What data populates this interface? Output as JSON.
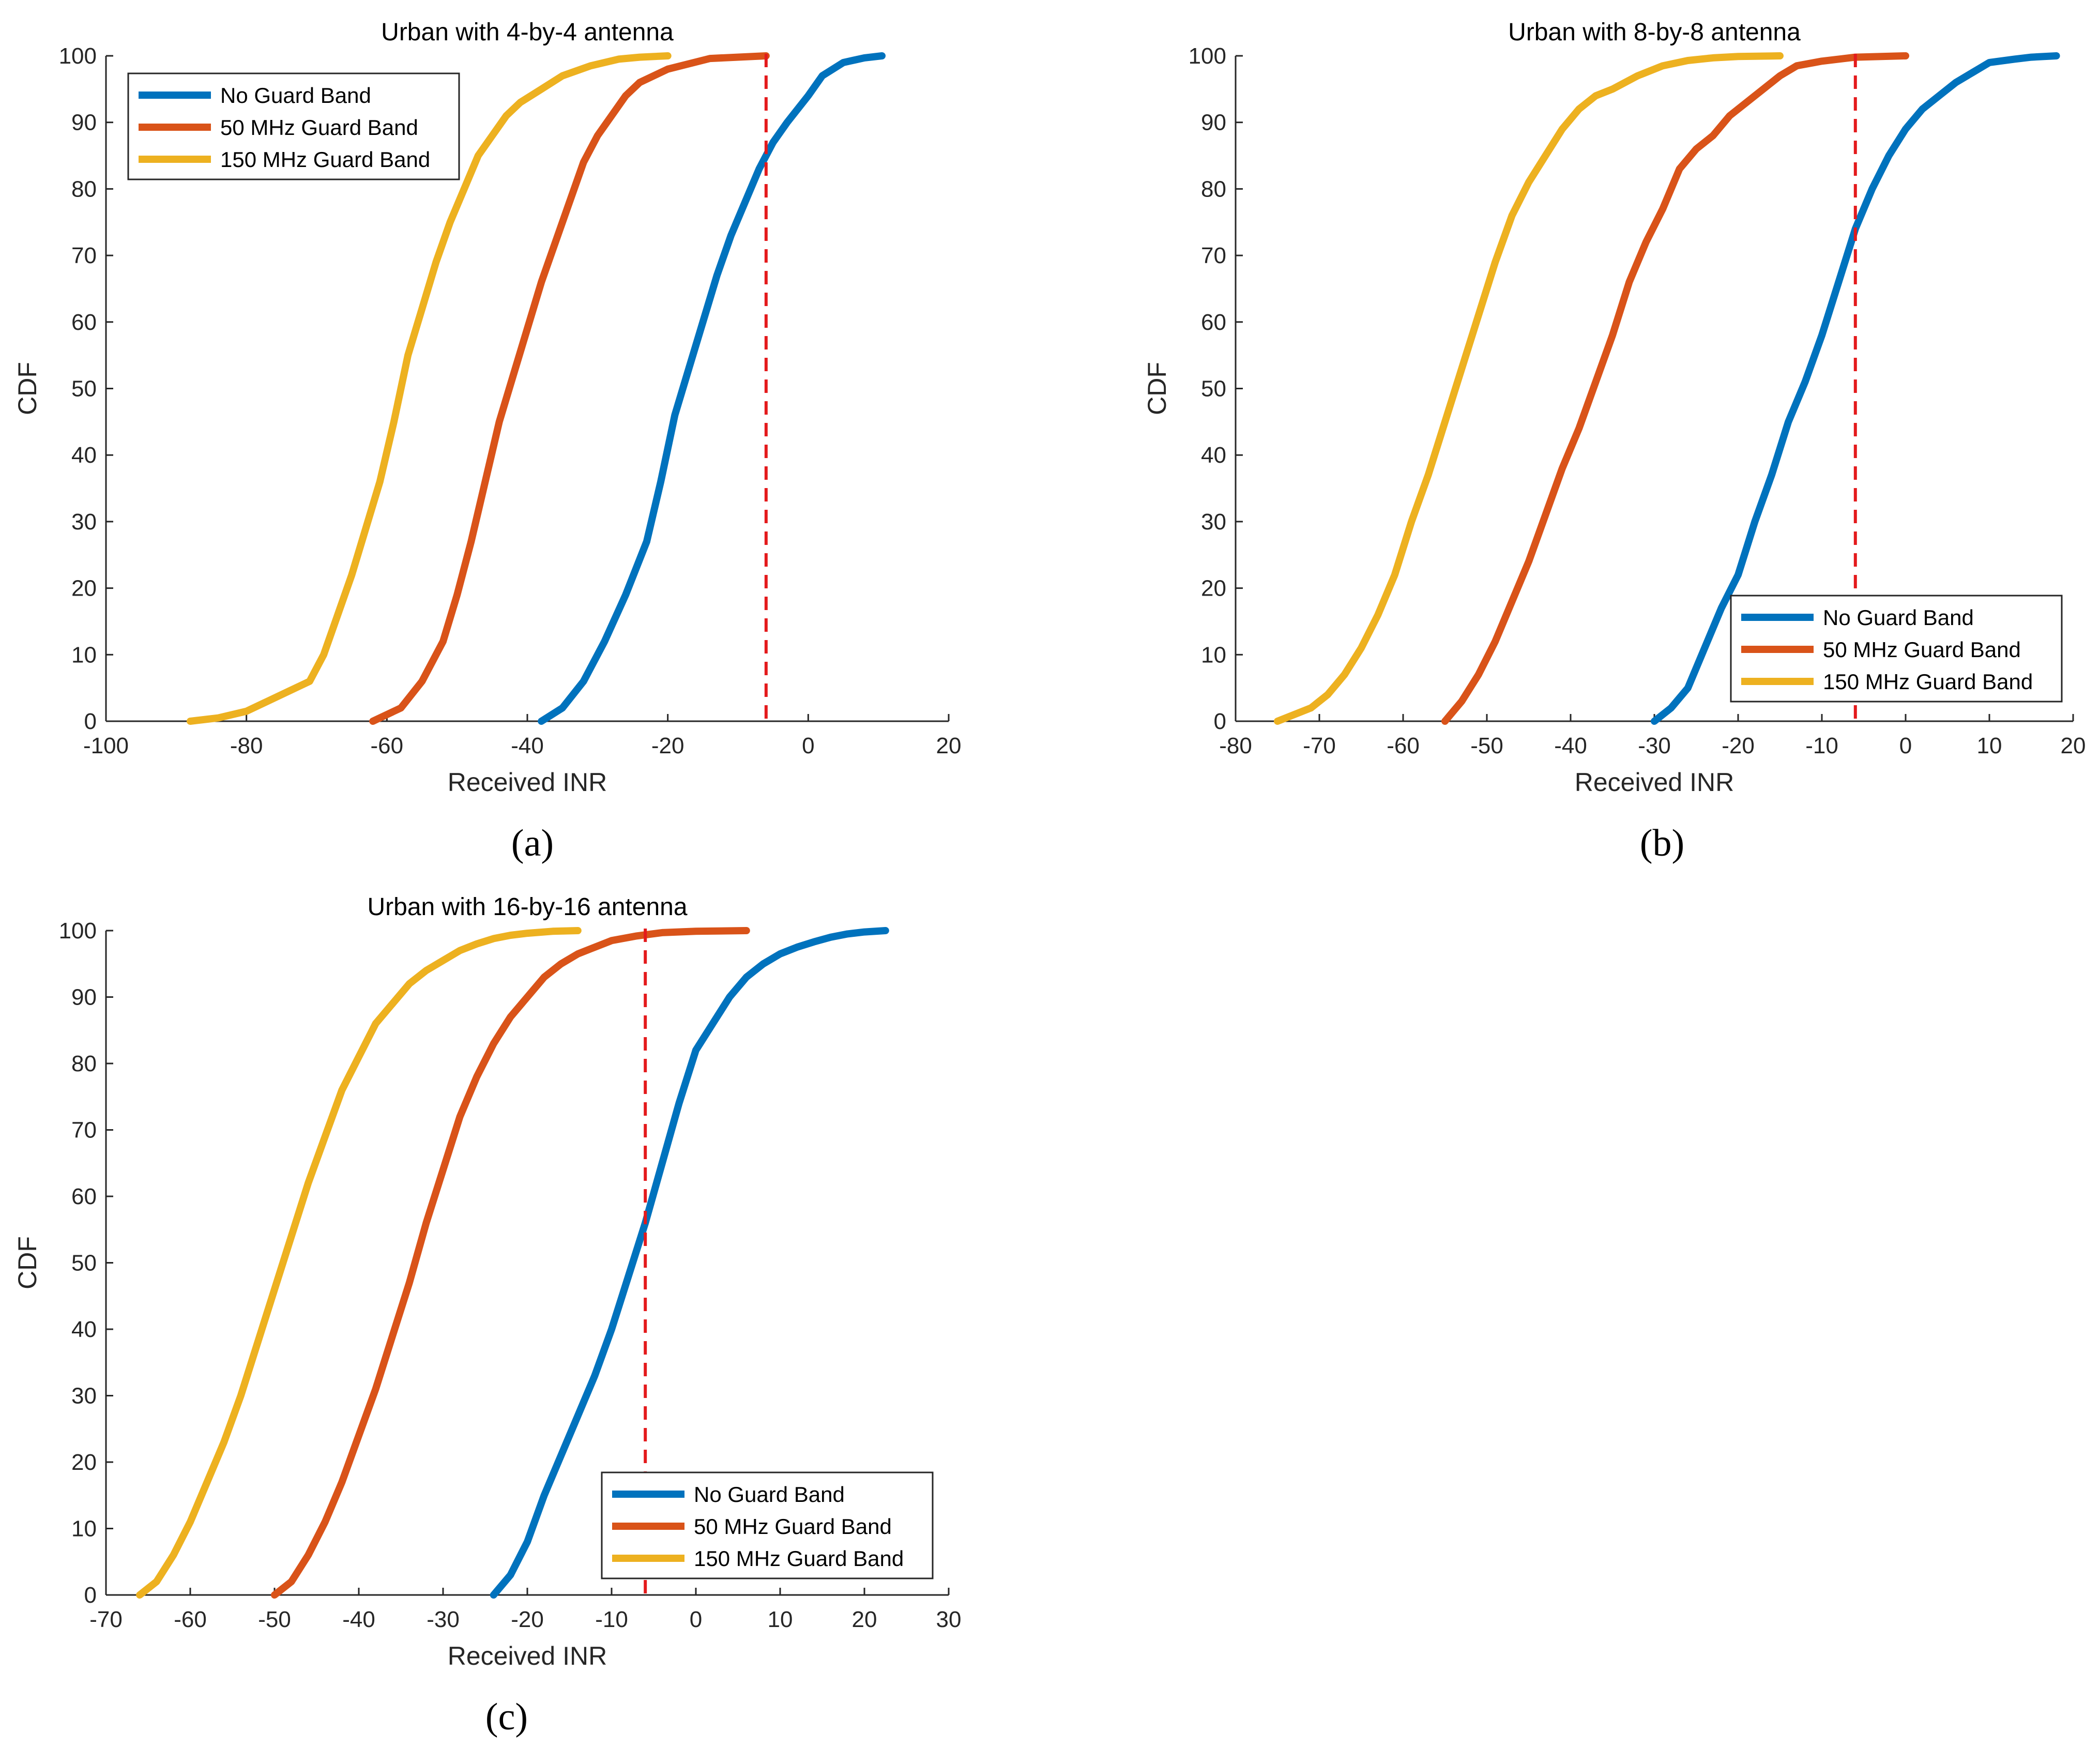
{
  "figure": {
    "panel_labels": [
      "(a)",
      "(b)",
      "(c)"
    ]
  },
  "colors": {
    "no_guard": "#0072BD",
    "guard_50": "#D95319",
    "guard_150": "#EDB120",
    "threshold": "#E41A1C",
    "axes": "#262626"
  },
  "chart_data": [
    {
      "type": "line",
      "title": "Urban with 4-by-4 antenna",
      "xlabel": "Received INR",
      "ylabel": "CDF",
      "xlim": [
        -100,
        20
      ],
      "ylim": [
        0,
        100
      ],
      "xticks": [
        -100,
        -80,
        -60,
        -40,
        -20,
        0,
        20
      ],
      "yticks": [
        0,
        10,
        20,
        30,
        40,
        50,
        60,
        70,
        80,
        90,
        100
      ],
      "grid": false,
      "legend_position": "top-left",
      "threshold_x": -6,
      "series": [
        {
          "name": "No Guard Band",
          "x": [
            -38,
            -35,
            -32,
            -29,
            -26,
            -23,
            -21,
            -19,
            -17,
            -15,
            -13,
            -11,
            -9,
            -7,
            -5,
            -3,
            0,
            2,
            5,
            8,
            10.5
          ],
          "y": [
            0,
            2,
            6,
            12,
            19,
            27,
            36,
            46,
            53,
            60,
            67,
            73,
            78,
            83,
            87,
            90,
            94,
            97,
            99,
            99.7,
            100
          ]
        },
        {
          "name": "50 MHz Guard Band",
          "x": [
            -62,
            -58,
            -55,
            -52,
            -50,
            -48,
            -46,
            -44,
            -42,
            -40,
            -38,
            -36,
            -34,
            -32,
            -30,
            -28,
            -26,
            -24,
            -20,
            -14,
            -6
          ],
          "y": [
            0,
            2,
            6,
            12,
            19,
            27,
            36,
            45,
            52,
            59,
            66,
            72,
            78,
            84,
            88,
            91,
            94,
            96,
            98,
            99.6,
            100
          ]
        },
        {
          "name": "150 MHz Guard Band",
          "x": [
            -88,
            -84,
            -80,
            -77,
            -74,
            -71,
            -69,
            -67,
            -65,
            -63,
            -61,
            -59,
            -57,
            -55,
            -53,
            -51,
            -49,
            -47,
            -45,
            -43,
            -41,
            -38,
            -35,
            -31,
            -27,
            -24,
            -20
          ],
          "y": [
            0,
            0.5,
            1.5,
            3,
            4.5,
            6,
            10,
            16,
            22,
            29,
            36,
            45,
            55,
            62,
            69,
            75,
            80,
            85,
            88,
            91,
            93,
            95,
            97,
            98.5,
            99.5,
            99.8,
            100
          ]
        }
      ]
    },
    {
      "type": "line",
      "title": "Urban with 8-by-8 antenna",
      "xlabel": "Received INR",
      "ylabel": "CDF",
      "xlim": [
        -80,
        20
      ],
      "ylim": [
        0,
        100
      ],
      "xticks": [
        -80,
        -70,
        -60,
        -50,
        -40,
        -30,
        -20,
        -10,
        0,
        10,
        20
      ],
      "yticks": [
        0,
        10,
        20,
        30,
        40,
        50,
        60,
        70,
        80,
        90,
        100
      ],
      "grid": false,
      "legend_position": "bottom-right",
      "threshold_x": -6,
      "series": [
        {
          "name": "No Guard Band",
          "x": [
            -30,
            -28,
            -26,
            -24,
            -22,
            -20,
            -18,
            -16,
            -14,
            -12,
            -10,
            -8,
            -6,
            -4,
            -2,
            0,
            2,
            4,
            6,
            8,
            10,
            13,
            15,
            18
          ],
          "y": [
            0,
            2,
            5,
            11,
            17,
            22,
            30,
            37,
            45,
            51,
            58,
            66,
            74,
            80,
            85,
            89,
            92,
            94,
            96,
            97.5,
            99,
            99.5,
            99.8,
            100
          ]
        },
        {
          "name": "50 MHz Guard Band",
          "x": [
            -55,
            -53,
            -51,
            -49,
            -47,
            -45,
            -43,
            -41,
            -39,
            -37,
            -35,
            -33,
            -31,
            -29,
            -27,
            -25,
            -23,
            -21,
            -19,
            -17,
            -15,
            -13,
            -10,
            -6,
            0
          ],
          "y": [
            0,
            3,
            7,
            12,
            18,
            24,
            31,
            38,
            44,
            51,
            58,
            66,
            72,
            77,
            83,
            86,
            88,
            91,
            93,
            95,
            97,
            98.5,
            99.2,
            99.8,
            100
          ]
        },
        {
          "name": "150 MHz Guard Band",
          "x": [
            -75,
            -73,
            -71,
            -69,
            -67,
            -65,
            -63,
            -61,
            -59,
            -57,
            -55,
            -53,
            -51,
            -49,
            -47,
            -45,
            -43,
            -41,
            -39,
            -37,
            -35,
            -32,
            -29,
            -26,
            -23,
            -20,
            -15
          ],
          "y": [
            0,
            1,
            2,
            4,
            7,
            11,
            16,
            22,
            30,
            37,
            45,
            53,
            61,
            69,
            76,
            81,
            85,
            89,
            92,
            94,
            95,
            97,
            98.5,
            99.3,
            99.7,
            99.9,
            100
          ]
        }
      ]
    },
    {
      "type": "line",
      "title": "Urban with 16-by-16 antenna",
      "xlabel": "Received INR",
      "ylabel": "CDF",
      "xlim": [
        -70,
        30
      ],
      "ylim": [
        0,
        100
      ],
      "xticks": [
        -70,
        -60,
        -50,
        -40,
        -30,
        -20,
        -10,
        0,
        10,
        20,
        30
      ],
      "yticks": [
        0,
        10,
        20,
        30,
        40,
        50,
        60,
        70,
        80,
        90,
        100
      ],
      "grid": false,
      "legend_position": "bottom-right",
      "threshold_x": -6,
      "series": [
        {
          "name": "No Guard Band",
          "x": [
            -24,
            -22,
            -20,
            -18,
            -16,
            -14,
            -12,
            -10,
            -8,
            -6,
            -4,
            -2,
            0,
            2,
            4,
            6,
            8,
            10,
            12,
            14,
            16,
            18,
            20,
            22.5
          ],
          "y": [
            0,
            3,
            8,
            15,
            21,
            27,
            33,
            40,
            48,
            56,
            65,
            74,
            82,
            86,
            90,
            93,
            95,
            96.5,
            97.5,
            98.3,
            99,
            99.5,
            99.8,
            100
          ]
        },
        {
          "name": "50 MHz Guard Band",
          "x": [
            -50,
            -48,
            -46,
            -44,
            -42,
            -40,
            -38,
            -36,
            -34,
            -32,
            -30,
            -28,
            -26,
            -24,
            -22,
            -20,
            -18,
            -16,
            -14,
            -12,
            -10,
            -7,
            -4,
            0,
            6
          ],
          "y": [
            0,
            2,
            6,
            11,
            17,
            24,
            31,
            39,
            47,
            56,
            64,
            72,
            78,
            83,
            87,
            90,
            93,
            95,
            96.5,
            97.5,
            98.5,
            99.2,
            99.7,
            99.9,
            100
          ]
        },
        {
          "name": "150 MHz Guard Band",
          "x": [
            -66,
            -64,
            -62,
            -60,
            -58,
            -56,
            -54,
            -52,
            -50,
            -48,
            -46,
            -44,
            -42,
            -40,
            -38,
            -36,
            -34,
            -32,
            -30,
            -28,
            -26,
            -24,
            -22,
            -20,
            -17,
            -14
          ],
          "y": [
            0,
            2,
            6,
            11,
            17,
            23,
            30,
            38,
            46,
            54,
            62,
            69,
            76,
            81,
            86,
            89,
            92,
            94,
            95.5,
            97,
            98,
            98.8,
            99.3,
            99.6,
            99.9,
            100
          ]
        }
      ]
    }
  ]
}
